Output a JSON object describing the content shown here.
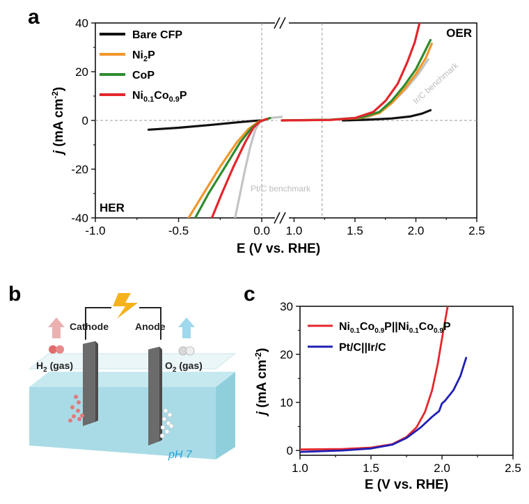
{
  "panel_a": {
    "letter": "a",
    "corner_left": "HER",
    "corner_right": "OER",
    "xlabel": "E (V vs. RHE)",
    "ylabel_italic": "j",
    "ylabel_rest": " (mA cm",
    "ylabel_sup": "-2",
    "ylabel_end": ")",
    "benchmark_left": "Pt/C benchmark",
    "benchmark_right": "Ir/C benchmark",
    "legend": [
      {
        "main": "Bare CFP",
        "color": "#111111"
      },
      {
        "main": "Ni",
        "sub": "2",
        "tail": "P",
        "color": "#f0962a"
      },
      {
        "main": "CoP",
        "color": "#2e8b2e"
      },
      {
        "main": "Ni",
        "sub": "0.1",
        "mid": "Co",
        "sub2": "0.9",
        "tail": "P",
        "color": "#e4262c"
      }
    ],
    "x_ticks_left": [
      "-1.0",
      "-0.5",
      "0.0"
    ],
    "x_ticks_right": [
      "1.0",
      "1.5",
      "2.0",
      "2.5"
    ],
    "y_ticks": [
      "40",
      "20",
      "0",
      "-20",
      "-40"
    ]
  },
  "panel_b": {
    "letter": "b",
    "cathode": "Cathode",
    "anode": "Anode",
    "h2": "H",
    "h2_sub": "2",
    "h2_tail": " (gas)",
    "o2": "O",
    "o2_sub": "2",
    "o2_tail": " (gas)",
    "ph": "pH 7",
    "colors": {
      "water": "#a9dbe6",
      "electrode": "#6b6b6b",
      "bolt": "#f5b21b",
      "h2_arrow": "#e8a3a3",
      "o2_arrow": "#8fd1ea"
    }
  },
  "panel_c": {
    "letter": "c",
    "xlabel": "E (V vs. RHE)",
    "ylabel_italic": "j",
    "ylabel_rest": " (mA cm",
    "ylabel_sup": "-2",
    "ylabel_end": ")",
    "x_ticks": [
      "1.0",
      "1.5",
      "2.0",
      "2.5"
    ],
    "y_ticks": [
      "30",
      "20",
      "10",
      "0"
    ],
    "legend": [
      {
        "parts": [
          [
            "Ni",
            ""
          ],
          [
            "0.1",
            "sub"
          ],
          [
            "Co",
            ""
          ],
          [
            "0.9",
            "sub"
          ],
          [
            "P||Ni",
            ""
          ],
          [
            "0.1",
            "sub"
          ],
          [
            "Co",
            ""
          ],
          [
            "0.9",
            "sub"
          ],
          [
            "P",
            ""
          ]
        ],
        "color": "#e4262c"
      },
      {
        "parts": [
          [
            "Pt/C||Ir/C",
            ""
          ]
        ],
        "color": "#1f1fb4"
      }
    ]
  },
  "chart_data": [
    {
      "type": "line",
      "panel": "a",
      "xlabel": "E (V vs. RHE)",
      "ylabel": "j (mA cm-2)",
      "xlim": [
        -1.0,
        2.5
      ],
      "ylim": [
        -40,
        40
      ],
      "axis_break": [
        0.1,
        0.9
      ],
      "reference_lines": {
        "x": [
          0.0,
          1.23
        ],
        "y": [
          0
        ]
      },
      "series": [
        {
          "name": "Bare CFP",
          "color": "#111111",
          "segments": [
            {
              "x": [
                -0.68,
                -0.5,
                -0.3,
                -0.15,
                -0.05,
                0.0
              ],
              "y": [
                -3.8,
                -3.0,
                -1.8,
                -0.8,
                -0.2,
                0.0
              ]
            },
            {
              "x": [
                1.4,
                1.6,
                1.8,
                1.95,
                2.05,
                2.12
              ],
              "y": [
                0.0,
                0.3,
                0.8,
                1.6,
                2.8,
                4.2
              ]
            }
          ]
        },
        {
          "name": "Ni2P",
          "color": "#f0962a",
          "segments": [
            {
              "x": [
                -0.44,
                -0.35,
                -0.25,
                -0.15,
                -0.08,
                -0.02,
                0.05
              ],
              "y": [
                -40,
                -30,
                -19,
                -9,
                -3.5,
                -0.5,
                1.0
              ]
            },
            {
              "x": [
                0.9,
                1.3,
                1.55,
                1.7,
                1.8,
                1.9,
                2.0,
                2.08,
                2.13
              ],
              "y": [
                0.0,
                0.3,
                1.0,
                3.0,
                7.0,
                12.5,
                19.0,
                25.5,
                31.5
              ]
            }
          ]
        },
        {
          "name": "CoP",
          "color": "#2e8b2e",
          "segments": [
            {
              "x": [
                -0.4,
                -0.32,
                -0.22,
                -0.13,
                -0.06,
                -0.01,
                0.05
              ],
              "y": [
                -40,
                -30,
                -19,
                -9,
                -3.0,
                -0.4,
                1.0
              ]
            },
            {
              "x": [
                0.9,
                1.3,
                1.55,
                1.7,
                1.8,
                1.9,
                2.0,
                2.07,
                2.12
              ],
              "y": [
                0.0,
                0.3,
                1.2,
                3.5,
                8.0,
                14.0,
                21.0,
                28.0,
                33.0
              ]
            }
          ]
        },
        {
          "name": "Ni0.1Co0.9P",
          "color": "#e4262c",
          "segments": [
            {
              "x": [
                -0.3,
                -0.24,
                -0.17,
                -0.1,
                -0.05,
                -0.01,
                0.03
              ],
              "y": [
                -40,
                -30,
                -19,
                -9,
                -3.0,
                -0.4,
                0.6
              ]
            },
            {
              "x": [
                0.9,
                1.3,
                1.5,
                1.65,
                1.75,
                1.85,
                1.93,
                1.99,
                2.03
              ],
              "y": [
                0.0,
                0.2,
                1.0,
                3.5,
                8.0,
                15.0,
                24.0,
                32.0,
                40.0
              ]
            }
          ]
        },
        {
          "name": "Pt/C",
          "color": "#c4c4c4",
          "segments": [
            {
              "x": [
                -0.16,
                -0.13,
                -0.1,
                -0.07,
                -0.04,
                -0.01,
                0.05,
                0.12
              ],
              "y": [
                -40,
                -30,
                -20,
                -11,
                -4.0,
                -0.5,
                1.0,
                1.5
              ]
            }
          ]
        },
        {
          "name": "Ir/C",
          "color": "#c4c4c4",
          "segments": [
            {
              "x": [
                1.45,
                1.6,
                1.72,
                1.82,
                1.92,
                2.02,
                2.1
              ],
              "y": [
                0.0,
                1.0,
                4.0,
                8.0,
                13.0,
                19.0,
                25.0
              ]
            }
          ]
        }
      ]
    },
    {
      "type": "line",
      "panel": "c",
      "xlabel": "E (V vs. RHE)",
      "ylabel": "j (mA cm-2)",
      "xlim": [
        1.0,
        2.5
      ],
      "ylim": [
        -1,
        30
      ],
      "series": [
        {
          "name": "Ni0.1Co0.9P||Ni0.1Co0.9P",
          "color": "#e4262c",
          "x": [
            1.0,
            1.3,
            1.5,
            1.65,
            1.75,
            1.82,
            1.88,
            1.93,
            1.97,
            2.01,
            2.04
          ],
          "y": [
            0.2,
            0.3,
            0.6,
            1.3,
            2.8,
            4.8,
            8.0,
            12.5,
            18.0,
            25.0,
            30.0
          ]
        },
        {
          "name": "Pt/C||Ir/C",
          "color": "#1f1fb4",
          "x": [
            1.0,
            1.3,
            1.5,
            1.65,
            1.75,
            1.85,
            1.93,
            1.98,
            2.0,
            2.02,
            2.08,
            2.13,
            2.17
          ],
          "y": [
            -0.3,
            0.0,
            0.4,
            1.2,
            2.6,
            4.8,
            7.0,
            8.2,
            9.8,
            10.3,
            12.5,
            15.5,
            19.3
          ]
        }
      ]
    }
  ]
}
